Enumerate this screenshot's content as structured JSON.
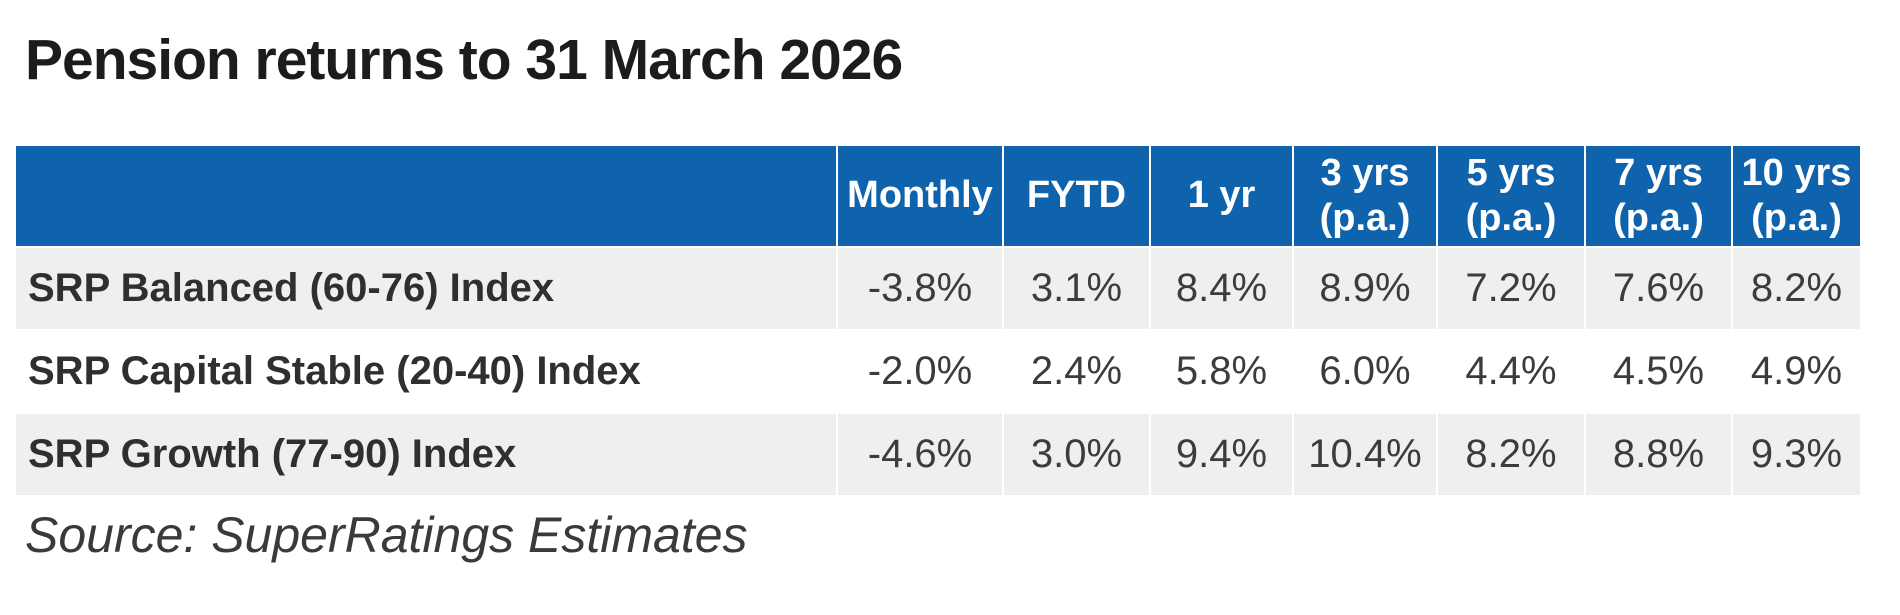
{
  "header": {
    "title": "Pension returns to 31 March 2026"
  },
  "table": {
    "columns": [
      "Monthly",
      "FYTD",
      "1 yr",
      "3 yrs\n(p.a.)",
      "5 yrs\n(p.a.)",
      "7 yrs\n(p.a.)",
      "10 yrs\n(p.a.)"
    ],
    "rows": [
      {
        "label": "SRP Balanced (60-76) Index",
        "values": [
          "-3.8%",
          "3.1%",
          "8.4%",
          "8.9%",
          "7.2%",
          "7.6%",
          "8.2%"
        ]
      },
      {
        "label": "SRP Capital Stable (20-40) Index",
        "values": [
          "-2.0%",
          "2.4%",
          "5.8%",
          "6.0%",
          "4.4%",
          "4.5%",
          "4.9%"
        ]
      },
      {
        "label": "SRP Growth (77-90) Index",
        "values": [
          "-4.6%",
          "3.0%",
          "9.4%",
          "10.4%",
          "8.2%",
          "8.8%",
          "9.3%"
        ]
      }
    ]
  },
  "footer": {
    "source": "Source: SuperRatings Estimates"
  },
  "colors": {
    "header_bg": "#0e63ac",
    "header_text": "#ffffff",
    "row_alt_bg": "#efefef",
    "row_bg": "#ffffff",
    "body_text": "#3c3c3c",
    "title_text": "#1c1c1c"
  },
  "chart_data": {
    "type": "table",
    "title": "Pension returns to 31 March 2026",
    "columns": [
      "Monthly",
      "FYTD",
      "1 yr",
      "3 yrs (p.a.)",
      "5 yrs (p.a.)",
      "7 yrs (p.a.)",
      "10 yrs (p.a.)"
    ],
    "rows": [
      {
        "name": "SRP Balanced (60-76) Index",
        "values_pct": [
          -3.8,
          3.1,
          8.4,
          8.9,
          7.2,
          7.6,
          8.2
        ]
      },
      {
        "name": "SRP Capital Stable (20-40) Index",
        "values_pct": [
          -2.0,
          2.4,
          5.8,
          6.0,
          4.4,
          4.5,
          4.9
        ]
      },
      {
        "name": "SRP Growth (77-90) Index",
        "values_pct": [
          -4.6,
          3.0,
          9.4,
          10.4,
          8.2,
          8.8,
          9.3
        ]
      }
    ],
    "source": "Source: SuperRatings Estimates",
    "layout": {
      "alternating_row_shading": true,
      "header_style": "blue-bar",
      "value_alignment": "center"
    }
  }
}
